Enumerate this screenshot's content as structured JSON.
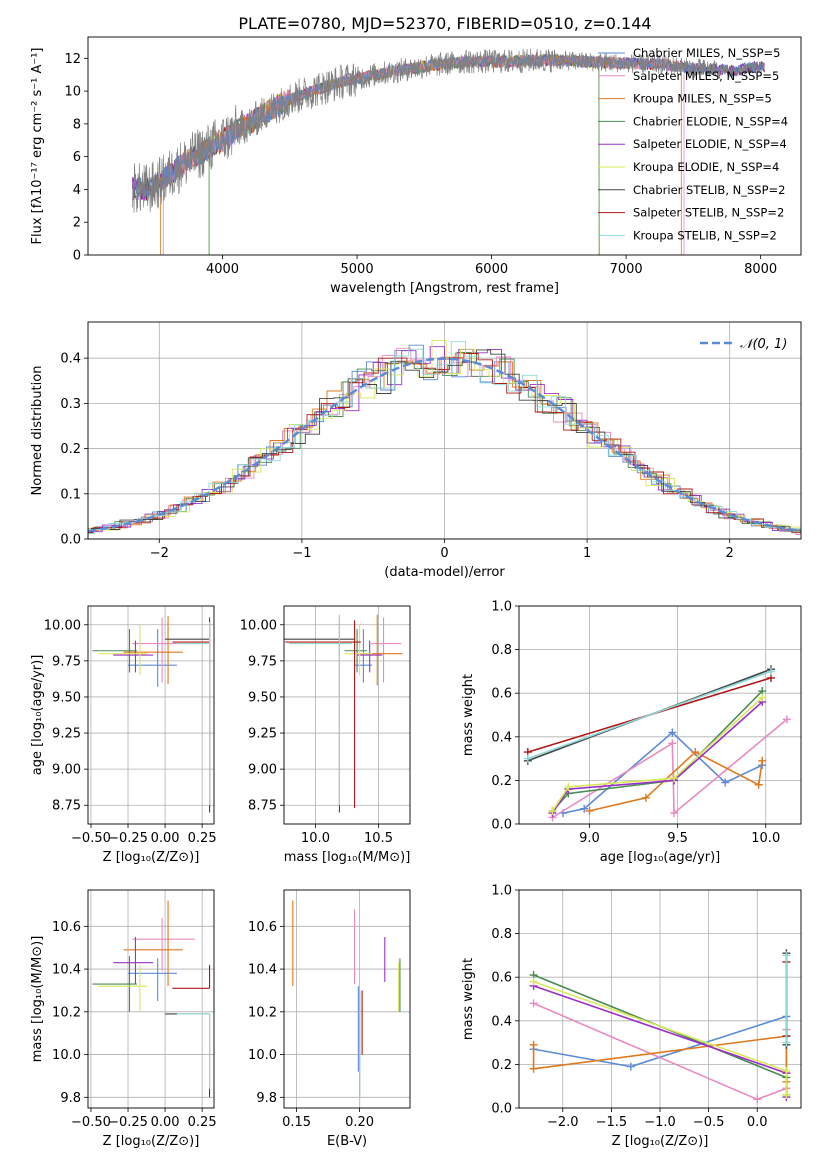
{
  "title": "PLATE=0780, MJD=52370, FIBERID=0510, z=0.144",
  "colors": {
    "chabrier_miles": "#5b8bd6",
    "salpeter_miles": "#e98ac1",
    "kroupa_miles": "#e0791e",
    "chabrier_elodie": "#4a8a55",
    "salpeter_elodie": "#9b30c8",
    "kroupa_elodie": "#d9e85a",
    "chabrier_stelib": "#444444",
    "salpeter_stelib": "#b01818",
    "kroupa_stelib": "#8fd8d8",
    "data": "#808080",
    "gaussian": "#5b8bd6"
  },
  "chart_data": [
    {
      "id": "spectrum",
      "type": "line",
      "xlabel": "wavelength [Angstrom, rest frame]",
      "ylabel": "Flux [fλ10⁻¹⁷ erg cm⁻² s⁻¹ A⁻¹]",
      "xlim": [
        3000,
        8300
      ],
      "ylim": [
        0,
        13.3
      ],
      "xticks": [
        4000,
        5000,
        6000,
        7000,
        8000
      ],
      "yticks": [
        0,
        2,
        4,
        6,
        8,
        10,
        12
      ],
      "legend_position": "top-right",
      "legend": [
        {
          "label": "Chabrier MILES, N_SSP=5",
          "color_key": "chabrier_miles"
        },
        {
          "label": "Salpeter MILES, N_SSP=5",
          "color_key": "salpeter_miles"
        },
        {
          "label": "Kroupa MILES, N_SSP=5",
          "color_key": "kroupa_miles"
        },
        {
          "label": "Chabrier ELODIE, N_SSP=4",
          "color_key": "chabrier_elodie"
        },
        {
          "label": "Salpeter ELODIE, N_SSP=4",
          "color_key": "salpeter_elodie"
        },
        {
          "label": "Kroupa ELODIE, N_SSP=4",
          "color_key": "kroupa_elodie"
        },
        {
          "label": "Chabrier STELIB, N_SSP=2",
          "color_key": "chabrier_stelib"
        },
        {
          "label": "Salpeter STELIB, N_SSP=2",
          "color_key": "salpeter_stelib"
        },
        {
          "label": "Kroupa STELIB, N_SSP=2",
          "color_key": "kroupa_stelib"
        }
      ],
      "data_range": [
        3330,
        8030
      ],
      "envelope": {
        "x": [
          3330,
          3450,
          3550,
          3650,
          3750,
          3850,
          3950,
          4000,
          4100,
          4200,
          4300,
          4500,
          4700,
          4900,
          5200,
          5500,
          5800,
          6100,
          6400,
          6700,
          7000,
          7300,
          7500,
          7700,
          7800,
          7900,
          8030
        ],
        "y": [
          4.1,
          4.0,
          4.5,
          5.2,
          5.8,
          6.3,
          6.8,
          7.0,
          7.6,
          8.0,
          8.6,
          9.5,
          10.1,
          10.6,
          11.1,
          11.5,
          11.8,
          11.8,
          11.9,
          11.8,
          11.7,
          11.6,
          11.4,
          11.3,
          11.2,
          11.4,
          11.5
        ]
      },
      "model_cutoffs": [
        {
          "color_key": "salpeter_miles",
          "low": 3560,
          "high": 7430
        },
        {
          "color_key": "kroupa_miles",
          "low": 3540,
          "high": 7410
        },
        {
          "color_key": "kroupa_elodie",
          "low": 3900,
          "high": 6800
        },
        {
          "color_key": "chabrier_elodie",
          "low": 3900,
          "high": 6800
        }
      ]
    },
    {
      "id": "residuals",
      "type": "area",
      "xlabel": "(data-model)/error",
      "ylabel": "Normed distribution",
      "xlim": [
        -2.5,
        2.5
      ],
      "ylim": [
        0,
        0.48
      ],
      "xticks": [
        -2,
        -1,
        0,
        1,
        2
      ],
      "yticks": [
        0.0,
        0.1,
        0.2,
        0.3,
        0.4
      ],
      "grid": true,
      "legend": [
        {
          "label": "𝒩(0, 1)",
          "color_key": "gaussian"
        }
      ],
      "legend_position": "top-right",
      "bin_width": 0.1,
      "series_keys": [
        "chabrier_miles",
        "salpeter_miles",
        "kroupa_miles",
        "chabrier_elodie",
        "salpeter_elodie",
        "kroupa_elodie",
        "chabrier_stelib",
        "salpeter_stelib",
        "kroupa_stelib"
      ]
    },
    {
      "id": "age_vs_Z",
      "type": "scatter",
      "xlabel": "Z [log₁₀(Z/Z⊙)]",
      "ylabel": "age  [log₁₀(age/yr)]",
      "xlim": [
        -0.52,
        0.33
      ],
      "ylim": [
        8.62,
        10.13
      ],
      "xticks": [
        -0.5,
        -0.25,
        0.0,
        0.25
      ],
      "yticks": [
        8.75,
        9.0,
        9.25,
        9.5,
        9.75,
        10.0
      ],
      "grid": true,
      "points": [
        {
          "color_key": "chabrier_miles",
          "x": -0.05,
          "xerr": [
            0.2,
            0.13
          ],
          "y": 9.72,
          "yerr": [
            0.15,
            0.25
          ]
        },
        {
          "color_key": "salpeter_miles",
          "x": -0.02,
          "xerr": [
            0.2,
            0.22
          ],
          "y": 9.87,
          "yerr": [
            0.27,
            0.18
          ]
        },
        {
          "color_key": "kroupa_miles",
          "x": 0.02,
          "xerr": [
            0.3,
            0.1
          ],
          "y": 9.81,
          "yerr": [
            0.22,
            0.25
          ]
        },
        {
          "color_key": "chabrier_elodie",
          "x": -0.24,
          "xerr": [
            0.25,
            0.05
          ],
          "y": 9.82,
          "yerr": [
            0.15,
            0.15
          ]
        },
        {
          "color_key": "salpeter_elodie",
          "x": -0.2,
          "xerr": [
            0.15,
            0.12
          ],
          "y": 9.79,
          "yerr": [
            0.12,
            0.1
          ]
        },
        {
          "color_key": "kroupa_elodie",
          "x": -0.17,
          "xerr": [
            0.28,
            0.05
          ],
          "y": 9.8,
          "yerr": [
            0.15,
            0.2
          ]
        },
        {
          "color_key": "chabrier_stelib",
          "x": 0.3,
          "xerr": [
            0.3,
            0.0
          ],
          "y": 9.9,
          "yerr": [
            1.2,
            0.15
          ]
        },
        {
          "color_key": "salpeter_stelib",
          "x": 0.3,
          "xerr": [
            0.25,
            0.0
          ],
          "y": 9.88,
          "yerr": [
            1.15,
            0.15
          ]
        },
        {
          "color_key": "kroupa_stelib",
          "x": 0.3,
          "xerr": [
            0.22,
            0.0
          ],
          "y": 9.87,
          "yerr": [
            1.12,
            0.15
          ]
        }
      ]
    },
    {
      "id": "age_vs_mass",
      "type": "scatter",
      "xlabel": "mass [log₁₀(M/M⊙)]",
      "ylabel": "",
      "xlim": [
        9.75,
        10.75
      ],
      "ylim": [
        8.62,
        10.13
      ],
      "xticks": [
        10.0,
        10.5
      ],
      "yticks": [
        8.75,
        9.0,
        9.25,
        9.5,
        9.75,
        10.0
      ],
      "grid": true,
      "points": [
        {
          "color_key": "chabrier_miles",
          "x": 10.38,
          "xerr": [
            0.07,
            0.07
          ],
          "y": 9.72,
          "yerr": [
            0.12,
            0.25
          ]
        },
        {
          "color_key": "salpeter_miles",
          "x": 10.54,
          "xerr": [
            0.1,
            0.14
          ],
          "y": 9.87,
          "yerr": [
            0.27,
            0.18
          ]
        },
        {
          "color_key": "kroupa_miles",
          "x": 10.49,
          "xerr": [
            0.14,
            0.2
          ],
          "y": 9.8,
          "yerr": [
            0.22,
            0.27
          ]
        },
        {
          "color_key": "chabrier_elodie",
          "x": 10.33,
          "xerr": [
            0.1,
            0.08
          ],
          "y": 9.82,
          "yerr": [
            0.15,
            0.15
          ]
        },
        {
          "color_key": "salpeter_elodie",
          "x": 10.43,
          "xerr": [
            0.1,
            0.1
          ],
          "y": 9.79,
          "yerr": [
            0.12,
            0.1
          ]
        },
        {
          "color_key": "kroupa_elodie",
          "x": 10.35,
          "xerr": [
            0.12,
            0.1
          ],
          "y": 9.8,
          "yerr": [
            0.15,
            0.2
          ]
        },
        {
          "color_key": "chabrier_stelib",
          "x": 10.19,
          "xerr": [
            0.45,
            0.12
          ],
          "y": 9.9,
          "yerr": [
            1.2,
            0.15
          ]
        },
        {
          "color_key": "salpeter_stelib",
          "x": 10.31,
          "xerr": [
            0.55,
            0.05
          ],
          "y": 9.88,
          "yerr": [
            1.15,
            0.15
          ]
        },
        {
          "color_key": "kroupa_stelib",
          "x": 10.19,
          "xerr": [
            0.4,
            0.1
          ],
          "y": 9.87,
          "yerr": [
            1.12,
            0.2
          ]
        }
      ]
    },
    {
      "id": "weight_vs_age",
      "type": "line",
      "xlabel": "age  [log₁₀(age/yr)]",
      "ylabel": "mass weight",
      "xlim": [
        8.6,
        10.2
      ],
      "ylim": [
        0.0,
        1.0
      ],
      "xticks": [
        9.0,
        9.5,
        10.0
      ],
      "yticks": [
        0.0,
        0.2,
        0.4,
        0.6,
        0.8,
        1.0
      ],
      "grid": true,
      "series": [
        {
          "color_key": "chabrier_miles",
          "x": [
            8.85,
            8.97,
            9.47,
            9.77,
            9.98
          ],
          "y": [
            0.05,
            0.07,
            0.42,
            0.19,
            0.27
          ]
        },
        {
          "color_key": "salpeter_miles",
          "x": [
            8.79,
            9.47,
            9.48,
            10.12
          ],
          "y": [
            0.03,
            0.37,
            0.05,
            0.48
          ]
        },
        {
          "color_key": "kroupa_miles",
          "x": [
            9.0,
            9.32,
            9.6,
            9.96,
            9.98
          ],
          "y": [
            0.06,
            0.12,
            0.33,
            0.18,
            0.29
          ]
        },
        {
          "color_key": "chabrier_elodie",
          "x": [
            8.79,
            8.88,
            9.48,
            9.98
          ],
          "y": [
            0.06,
            0.14,
            0.2,
            0.61
          ]
        },
        {
          "color_key": "salpeter_elodie",
          "x": [
            8.79,
            8.88,
            9.48,
            9.98
          ],
          "y": [
            0.05,
            0.16,
            0.2,
            0.56
          ]
        },
        {
          "color_key": "kroupa_elodie",
          "x": [
            8.79,
            8.88,
            9.48,
            9.98
          ],
          "y": [
            0.06,
            0.17,
            0.21,
            0.58
          ]
        },
        {
          "color_key": "chabrier_stelib",
          "x": [
            8.65,
            10.03
          ],
          "y": [
            0.29,
            0.71
          ]
        },
        {
          "color_key": "salpeter_stelib",
          "x": [
            8.65,
            10.03
          ],
          "y": [
            0.33,
            0.67
          ]
        },
        {
          "color_key": "kroupa_stelib",
          "x": [
            8.65,
            10.03
          ],
          "y": [
            0.3,
            0.7
          ]
        }
      ]
    },
    {
      "id": "mass_vs_Z",
      "type": "scatter",
      "xlabel": "Z [log₁₀(Z/Z⊙)]",
      "ylabel": "mass [log₁₀(M/M⊙)]",
      "xlim": [
        -0.52,
        0.33
      ],
      "ylim": [
        9.75,
        10.77
      ],
      "xticks": [
        -0.5,
        -0.25,
        0.0,
        0.25
      ],
      "yticks": [
        9.8,
        10.0,
        10.2,
        10.4,
        10.6
      ],
      "grid": true,
      "points": [
        {
          "color_key": "chabrier_miles",
          "x": -0.05,
          "xerr": [
            0.2,
            0.13
          ],
          "y": 10.38,
          "yerr": [
            0.13,
            0.07
          ]
        },
        {
          "color_key": "salpeter_miles",
          "x": -0.02,
          "xerr": [
            0.2,
            0.22
          ],
          "y": 10.54,
          "yerr": [
            0.15,
            0.1
          ]
        },
        {
          "color_key": "kroupa_miles",
          "x": 0.02,
          "xerr": [
            0.3,
            0.1
          ],
          "y": 10.49,
          "yerr": [
            0.17,
            0.23
          ]
        },
        {
          "color_key": "chabrier_elodie",
          "x": -0.24,
          "xerr": [
            0.25,
            0.05
          ],
          "y": 10.33,
          "yerr": [
            0.13,
            0.13
          ]
        },
        {
          "color_key": "salpeter_elodie",
          "x": -0.2,
          "xerr": [
            0.15,
            0.12
          ],
          "y": 10.43,
          "yerr": [
            0.1,
            0.12
          ]
        },
        {
          "color_key": "kroupa_elodie",
          "x": -0.17,
          "xerr": [
            0.28,
            0.05
          ],
          "y": 10.32,
          "yerr": [
            0.12,
            0.1
          ]
        },
        {
          "color_key": "chabrier_stelib",
          "x": 0.3,
          "xerr": [
            0.3,
            0.0
          ],
          "y": 10.19,
          "yerr": [
            0.39,
            0.0
          ]
        },
        {
          "color_key": "salpeter_stelib",
          "x": 0.3,
          "xerr": [
            0.25,
            0.0
          ],
          "y": 10.31,
          "yerr": [
            0.0,
            0.11
          ]
        },
        {
          "color_key": "kroupa_stelib",
          "x": 0.3,
          "xerr": [
            0.22,
            0.0
          ],
          "y": 10.19,
          "yerr": [
            0.35,
            0.0
          ]
        }
      ]
    },
    {
      "id": "mass_vs_ebv",
      "type": "scatter",
      "xlabel": "E(B-V)",
      "ylabel": "",
      "xlim": [
        0.14,
        0.24
      ],
      "ylim": [
        9.75,
        10.77
      ],
      "xticks": [
        0.15,
        0.2
      ],
      "yticks": [
        9.8,
        10.0,
        10.2,
        10.4,
        10.6
      ],
      "grid": true,
      "points": [
        {
          "color_key": "kroupa_miles",
          "x": 0.147,
          "y": 10.52,
          "yerr": [
            0.2,
            0.2
          ]
        },
        {
          "color_key": "salpeter_miles",
          "x": 0.196,
          "y": 10.53,
          "yerr": [
            0.2,
            0.15
          ]
        },
        {
          "color_key": "chabrier_miles",
          "x": 0.199,
          "y": 10.22,
          "yerr": [
            0.3,
            0.1
          ]
        },
        {
          "color_key": "chabrier_stelib",
          "x": 0.2,
          "y": 10.15,
          "yerr": [
            0.35,
            0.15
          ]
        },
        {
          "color_key": "kroupa_stelib",
          "x": 0.2,
          "y": 10.1,
          "yerr": [
            0.35,
            0.2
          ]
        },
        {
          "color_key": "salpeter_stelib",
          "x": 0.202,
          "y": 10.2,
          "yerr": [
            0.2,
            0.1
          ]
        },
        {
          "color_key": "salpeter_elodie",
          "x": 0.22,
          "y": 10.44,
          "yerr": [
            0.1,
            0.11
          ]
        },
        {
          "color_key": "kroupa_elodie",
          "x": 0.231,
          "y": 10.33,
          "yerr": [
            0.13,
            0.1
          ]
        },
        {
          "color_key": "chabrier_elodie",
          "x": 0.232,
          "y": 10.32,
          "yerr": [
            0.12,
            0.13
          ]
        }
      ]
    },
    {
      "id": "weight_vs_Z",
      "type": "line",
      "xlabel": "Z [log₁₀(Z/Z⊙)]",
      "ylabel": "mass weight",
      "xlim": [
        -2.45,
        0.45
      ],
      "ylim": [
        0.0,
        1.0
      ],
      "xticks": [
        -2.0,
        -1.5,
        -1.0,
        -0.5,
        0.0
      ],
      "yticks": [
        0.0,
        0.2,
        0.4,
        0.6,
        0.8,
        1.0
      ],
      "grid": true,
      "series": [
        {
          "color_key": "chabrier_miles",
          "x": [
            -2.3,
            -1.3,
            0.3
          ],
          "y": [
            0.27,
            0.19,
            0.42
          ]
        },
        {
          "color_key": "salpeter_miles",
          "x": [
            -2.3,
            0.0,
            0.3,
            0.3
          ],
          "y": [
            0.48,
            0.04,
            0.09,
            0.36
          ]
        },
        {
          "color_key": "kroupa_miles",
          "x": [
            -2.3,
            -2.3,
            0.3,
            0.3
          ],
          "y": [
            0.29,
            0.18,
            0.33,
            0.12
          ]
        },
        {
          "color_key": "chabrier_elodie",
          "x": [
            -2.3,
            0.3,
            0.3
          ],
          "y": [
            0.61,
            0.14,
            0.06
          ]
        },
        {
          "color_key": "salpeter_elodie",
          "x": [
            -2.3,
            0.3,
            0.3
          ],
          "y": [
            0.56,
            0.16,
            0.05
          ]
        },
        {
          "color_key": "kroupa_elodie",
          "x": [
            -2.3,
            0.3,
            0.3
          ],
          "y": [
            0.58,
            0.17,
            0.06
          ]
        },
        {
          "color_key": "chabrier_stelib",
          "x": [
            0.3,
            0.3
          ],
          "y": [
            0.29,
            0.71
          ]
        },
        {
          "color_key": "salpeter_stelib",
          "x": [
            0.3,
            0.3
          ],
          "y": [
            0.33,
            0.67
          ]
        },
        {
          "color_key": "kroupa_stelib",
          "x": [
            0.3,
            0.3
          ],
          "y": [
            0.3,
            0.7
          ]
        }
      ]
    }
  ]
}
